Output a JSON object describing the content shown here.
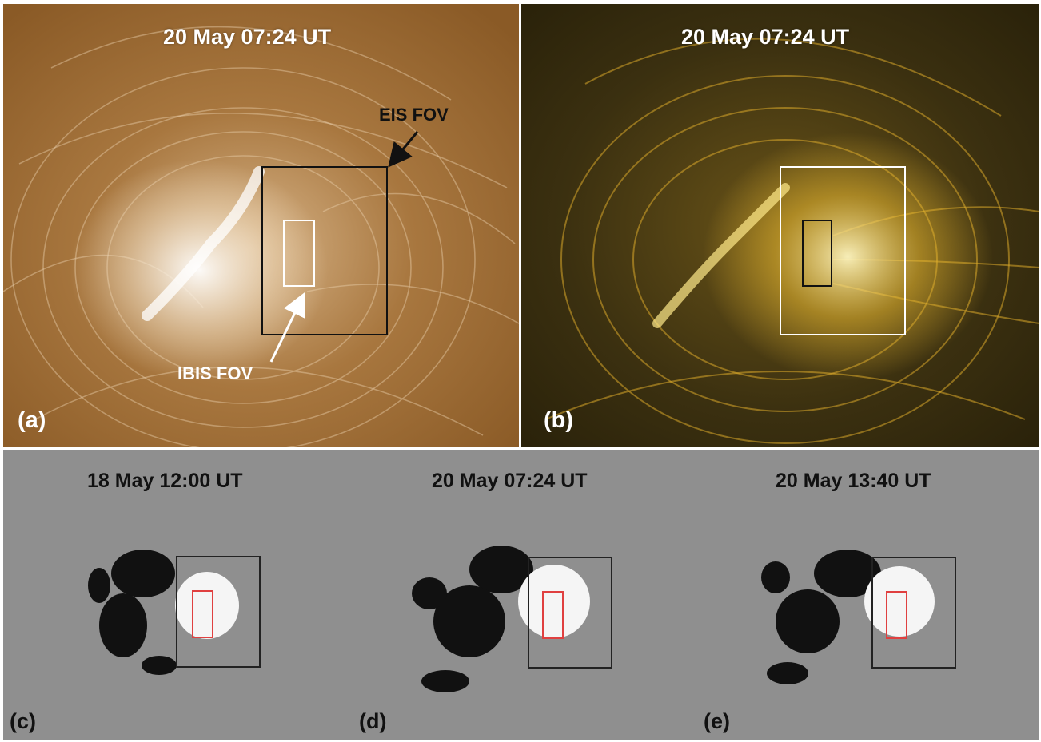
{
  "panels": {
    "a": {
      "tag": "(a)",
      "time": "20 May 07:24 UT",
      "eis_label": "EIS FOV",
      "ibis_label": "IBIS FOV"
    },
    "b": {
      "tag": "(b)",
      "time": "20 May 07:24 UT"
    },
    "c": {
      "tag": "(c)",
      "time": "18 May 12:00 UT"
    },
    "d": {
      "tag": "(d)",
      "time": "20 May 07:24 UT"
    },
    "e": {
      "tag": "(e)",
      "time": "20 May 13:40 UT"
    }
  },
  "colors": {
    "panel_a_base": "#9a6a35",
    "panel_b_base": "#3f3412",
    "magnetogram_base": "#8f8f8f",
    "eis_box_dark": "#111111",
    "eis_box_light": "#ffffff",
    "ibis_box_red": "#e04040"
  }
}
